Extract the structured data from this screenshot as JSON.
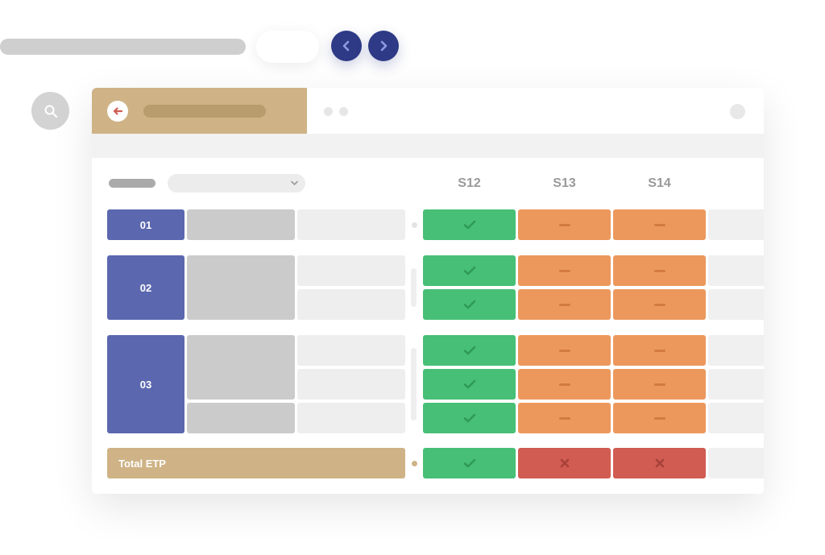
{
  "nav": {
    "prev_icon": "chevron-left-icon",
    "next_icon": "chevron-right-icon"
  },
  "search": {
    "icon": "search-icon"
  },
  "panel": {
    "back_icon": "arrow-left-icon"
  },
  "weeks": [
    "S12",
    "S13",
    "S14"
  ],
  "rows": [
    {
      "label": "01",
      "statuses": [
        [
          "ok",
          "warn",
          "warn"
        ]
      ]
    },
    {
      "label": "02",
      "statuses": [
        [
          "ok",
          "warn",
          "warn"
        ],
        [
          "ok",
          "warn",
          "warn"
        ]
      ]
    },
    {
      "label": "03",
      "statuses": [
        [
          "ok",
          "warn",
          "warn"
        ],
        [
          "ok",
          "warn",
          "warn"
        ],
        [
          "ok",
          "warn",
          "warn"
        ]
      ]
    }
  ],
  "total": {
    "label": "Total ETP",
    "statuses": [
      "ok",
      "bad",
      "bad"
    ]
  },
  "colors": {
    "accent": "#2e3a86",
    "row_label": "#5b67af",
    "tan": "#cfb386",
    "ok": "#47bf77",
    "warn": "#ec985d",
    "bad": "#d05c52"
  }
}
